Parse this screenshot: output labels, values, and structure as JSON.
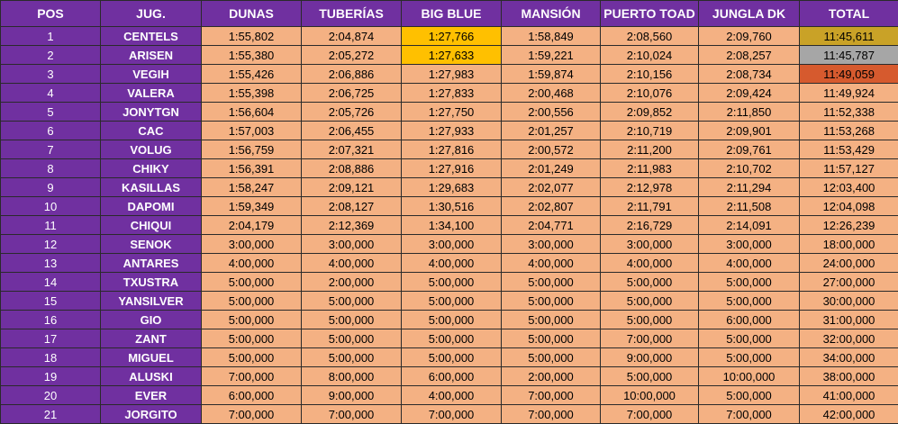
{
  "colors": {
    "header_bg": "#7030a0",
    "cell_bg": "#f4b183",
    "best_lap_highlight": "#ffc000",
    "total_first": "#c9a227",
    "total_second": "#a6a6a6",
    "total_third": "#d65a2e"
  },
  "headers": [
    "POS",
    "JUG.",
    "DUNAS",
    "TUBERÍAS",
    "BIG BLUE",
    "MANSIÓN",
    "PUERTO TOAD",
    "JUNGLA DK",
    "TOTAL"
  ],
  "rows": [
    {
      "pos": "1",
      "jug": "CENTELS",
      "times": [
        "1:55,802",
        "2:04,874",
        "1:27,766",
        "1:58,849",
        "2:08,560",
        "2:09,760"
      ],
      "total": "11:45,611"
    },
    {
      "pos": "2",
      "jug": "ARISEN",
      "times": [
        "1:55,380",
        "2:05,272",
        "1:27,633",
        "1:59,221",
        "2:10,024",
        "2:08,257"
      ],
      "total": "11:45,787"
    },
    {
      "pos": "3",
      "jug": "VEGIH",
      "times": [
        "1:55,426",
        "2:06,886",
        "1:27,983",
        "1:59,874",
        "2:10,156",
        "2:08,734"
      ],
      "total": "11:49,059"
    },
    {
      "pos": "4",
      "jug": "VALERA",
      "times": [
        "1:55,398",
        "2:06,725",
        "1:27,833",
        "2:00,468",
        "2:10,076",
        "2:09,424"
      ],
      "total": "11:49,924"
    },
    {
      "pos": "5",
      "jug": "JONYTGN",
      "times": [
        "1:56,604",
        "2:05,726",
        "1:27,750",
        "2:00,556",
        "2:09,852",
        "2:11,850"
      ],
      "total": "11:52,338"
    },
    {
      "pos": "6",
      "jug": "CAC",
      "times": [
        "1:57,003",
        "2:06,455",
        "1:27,933",
        "2:01,257",
        "2:10,719",
        "2:09,901"
      ],
      "total": "11:53,268"
    },
    {
      "pos": "7",
      "jug": "VOLUG",
      "times": [
        "1:56,759",
        "2:07,321",
        "1:27,816",
        "2:00,572",
        "2:11,200",
        "2:09,761"
      ],
      "total": "11:53,429"
    },
    {
      "pos": "8",
      "jug": "CHIKY",
      "times": [
        "1:56,391",
        "2:08,886",
        "1:27,916",
        "2:01,249",
        "2:11,983",
        "2:10,702"
      ],
      "total": "11:57,127"
    },
    {
      "pos": "9",
      "jug": "KASILLAS",
      "times": [
        "1:58,247",
        "2:09,121",
        "1:29,683",
        "2:02,077",
        "2:12,978",
        "2:11,294"
      ],
      "total": "12:03,400"
    },
    {
      "pos": "10",
      "jug": "DAPOMI",
      "times": [
        "1:59,349",
        "2:08,127",
        "1:30,516",
        "2:02,807",
        "2:11,791",
        "2:11,508"
      ],
      "total": "12:04,098"
    },
    {
      "pos": "11",
      "jug": "CHIQUI",
      "times": [
        "2:04,179",
        "2:12,369",
        "1:34,100",
        "2:04,771",
        "2:16,729",
        "2:14,091"
      ],
      "total": "12:26,239"
    },
    {
      "pos": "12",
      "jug": "SENOK",
      "times": [
        "3:00,000",
        "3:00,000",
        "3:00,000",
        "3:00,000",
        "3:00,000",
        "3:00,000"
      ],
      "total": "18:00,000"
    },
    {
      "pos": "13",
      "jug": "ANTARES",
      "times": [
        "4:00,000",
        "4:00,000",
        "4:00,000",
        "4:00,000",
        "4:00,000",
        "4:00,000"
      ],
      "total": "24:00,000"
    },
    {
      "pos": "14",
      "jug": "TXUSTRA",
      "times": [
        "5:00,000",
        "2:00,000",
        "5:00,000",
        "5:00,000",
        "5:00,000",
        "5:00,000"
      ],
      "total": "27:00,000"
    },
    {
      "pos": "15",
      "jug": "YANSILVER",
      "times": [
        "5:00,000",
        "5:00,000",
        "5:00,000",
        "5:00,000",
        "5:00,000",
        "5:00,000"
      ],
      "total": "30:00,000"
    },
    {
      "pos": "16",
      "jug": "GIO",
      "times": [
        "5:00,000",
        "5:00,000",
        "5:00,000",
        "5:00,000",
        "5:00,000",
        "6:00,000"
      ],
      "total": "31:00,000"
    },
    {
      "pos": "17",
      "jug": "ZANT",
      "times": [
        "5:00,000",
        "5:00,000",
        "5:00,000",
        "5:00,000",
        "7:00,000",
        "5:00,000"
      ],
      "total": "32:00,000"
    },
    {
      "pos": "18",
      "jug": "MIGUEL",
      "times": [
        "5:00,000",
        "5:00,000",
        "5:00,000",
        "5:00,000",
        "9:00,000",
        "5:00,000"
      ],
      "total": "34:00,000"
    },
    {
      "pos": "19",
      "jug": "ALUSKI",
      "times": [
        "7:00,000",
        "8:00,000",
        "6:00,000",
        "2:00,000",
        "5:00,000",
        "10:00,000"
      ],
      "total": "38:00,000"
    },
    {
      "pos": "20",
      "jug": "EVER",
      "times": [
        "6:00,000",
        "9:00,000",
        "4:00,000",
        "7:00,000",
        "10:00,000",
        "5:00,000"
      ],
      "total": "41:00,000"
    },
    {
      "pos": "21",
      "jug": "JORGITO",
      "times": [
        "7:00,000",
        "7:00,000",
        "7:00,000",
        "7:00,000",
        "7:00,000",
        "7:00,000"
      ],
      "total": "42:00,000"
    }
  ]
}
